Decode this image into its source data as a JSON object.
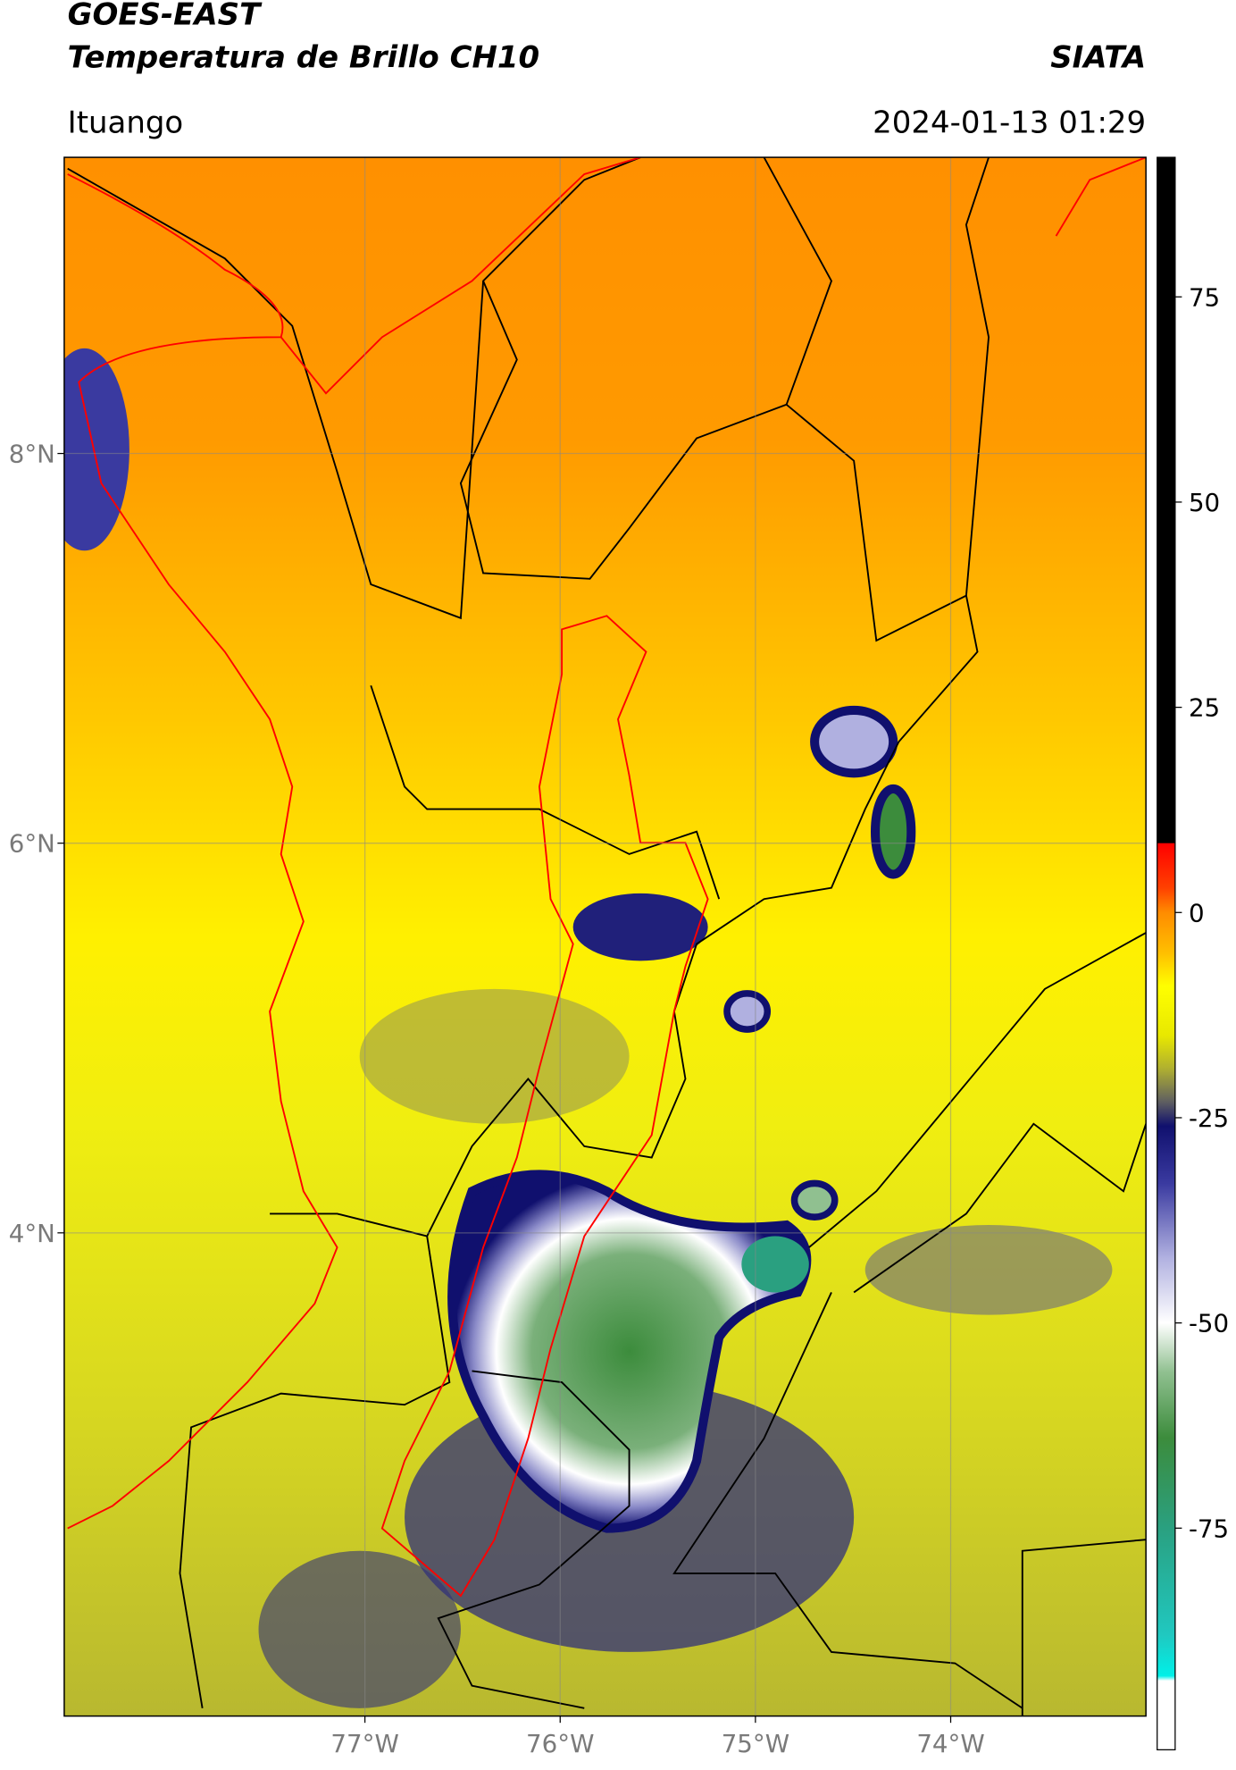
{
  "header": {
    "title": "GOES-EAST",
    "subtitle": "Temperatura de Brillo CH10",
    "source": "SIATA",
    "location": "Ituango",
    "datetime": "2024-01-13 01:29"
  },
  "map": {
    "xlim": [
      -78.54,
      -73.0
    ],
    "ylim": [
      1.52,
      9.52
    ],
    "lon_ticks": [
      {
        "value": -77,
        "label": "77°W"
      },
      {
        "value": -76,
        "label": "76°W"
      },
      {
        "value": -75,
        "label": "75°W"
      },
      {
        "value": -74,
        "label": "74°W"
      }
    ],
    "lat_ticks": [
      {
        "value": 8,
        "label": "8°N"
      },
      {
        "value": 6,
        "label": "6°N"
      },
      {
        "value": 4,
        "label": "4°N"
      }
    ],
    "grid": true
  },
  "colorbar": {
    "clim": [
      -102,
      92
    ],
    "ticks": [
      75,
      50,
      25,
      0,
      -25,
      -50,
      -75
    ],
    "stops": [
      {
        "value": 92,
        "color": "#000000"
      },
      {
        "value": 8.5,
        "color": "#000000"
      },
      {
        "value": 8.4,
        "color": "#ff0000"
      },
      {
        "value": 3,
        "color": "#ff4000"
      },
      {
        "value": 0,
        "color": "#ff8c00"
      },
      {
        "value": -5,
        "color": "#ffc000"
      },
      {
        "value": -9,
        "color": "#ffff00"
      },
      {
        "value": -15,
        "color": "#e8e800"
      },
      {
        "value": -19,
        "color": "#b0b030"
      },
      {
        "value": -23,
        "color": "#606060"
      },
      {
        "value": -26,
        "color": "#10106e"
      },
      {
        "value": -33,
        "color": "#3a3aa0"
      },
      {
        "value": -42,
        "color": "#b0b0e0"
      },
      {
        "value": -50,
        "color": "#ffffff"
      },
      {
        "value": -56,
        "color": "#90c090"
      },
      {
        "value": -64,
        "color": "#3c8c3c"
      },
      {
        "value": -75,
        "color": "#2aa080"
      },
      {
        "value": -88,
        "color": "#20c8c0"
      },
      {
        "value": -93,
        "color": "#00f0e8"
      },
      {
        "value": -93.6,
        "color": "#ffffff"
      },
      {
        "value": -102,
        "color": "#ffffff"
      }
    ]
  }
}
